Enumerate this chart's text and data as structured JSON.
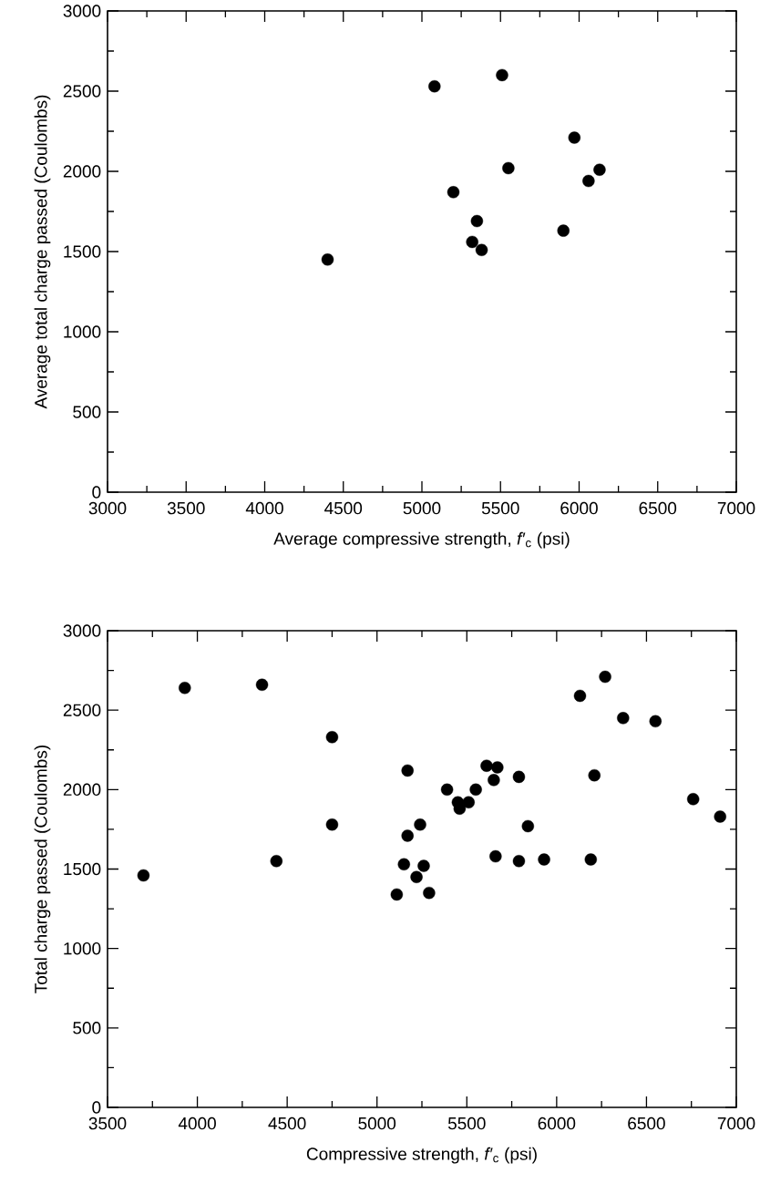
{
  "chart_data": [
    {
      "type": "scatter",
      "xlabel": "Average compressive strength, *f′*$_{c}$ (psi)",
      "ylabel": "Average total charge passed (Coulombs)",
      "color": "#000000",
      "marker": "circle",
      "x": [
        4400,
        5080,
        5200,
        5320,
        5350,
        5380,
        5510,
        5550,
        5900,
        5970,
        6060,
        6130
      ],
      "values": [
        1450,
        2530,
        1870,
        1560,
        1690,
        1510,
        2600,
        2020,
        1630,
        2210,
        1940,
        2010
      ],
      "xlim": [
        3000,
        7000
      ],
      "ylim": [
        0,
        3000
      ],
      "xticks": [
        3000,
        3500,
        4000,
        4500,
        5000,
        5500,
        6000,
        6500,
        7000
      ],
      "yticks": [
        0,
        500,
        1000,
        1500,
        2000,
        2500,
        3000
      ]
    },
    {
      "type": "scatter",
      "xlabel": "Compressive strength, *f′*$_{c}$ (psi)",
      "ylabel": "Total charge passed (Coulombs)",
      "color": "#000000",
      "marker": "circle",
      "x": [
        3700,
        3930,
        4360,
        4440,
        4750,
        4750,
        5110,
        5150,
        5170,
        5170,
        5220,
        5240,
        5260,
        5290,
        5390,
        5450,
        5460,
        5510,
        5550,
        5610,
        5650,
        5670,
        5660,
        5790,
        5790,
        5840,
        5930,
        6130,
        6190,
        6210,
        6270,
        6370,
        6550,
        6760,
        6910
      ],
      "values": [
        1460,
        2640,
        2660,
        1550,
        2330,
        1780,
        1340,
        1530,
        1710,
        2120,
        1450,
        1780,
        1520,
        1350,
        2000,
        1920,
        1880,
        1920,
        2000,
        2150,
        2060,
        2140,
        1580,
        1550,
        2080,
        1770,
        1560,
        2590,
        1560,
        2090,
        2710,
        2450,
        2430,
        1940,
        1830
      ],
      "xlim": [
        3500,
        7000
      ],
      "ylim": [
        0,
        3000
      ],
      "xticks": [
        3500,
        4000,
        4500,
        5000,
        5500,
        6000,
        6500,
        7000
      ],
      "yticks": [
        0,
        500,
        1000,
        1500,
        2000,
        2500,
        3000
      ]
    }
  ]
}
